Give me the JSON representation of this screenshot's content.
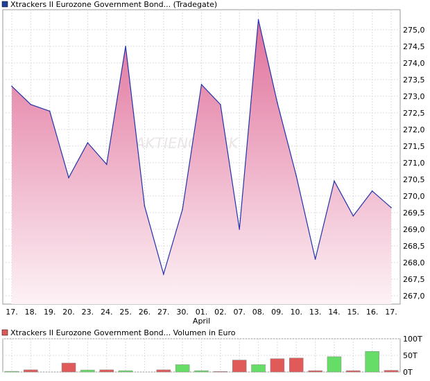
{
  "chart_data": [
    {
      "type": "area",
      "title": "Xtrackers II Eurozone Government Bond... (Tradegate)",
      "legend_color": "#1f3f9a",
      "line_color": "#2233aa",
      "fill_top_color": "#e0709a",
      "fill_bottom_color": "#fdf2f6",
      "watermark": "AKTIENCHECK",
      "x": [
        "17.",
        "18.",
        "19.",
        "20.",
        "23.",
        "24.",
        "25.",
        "26.",
        "27.",
        "30.",
        "01.",
        "02.",
        "07.",
        "08.",
        "09.",
        "10.",
        "13.",
        "14.",
        "15.",
        "16.",
        "17."
      ],
      "x_secondary_label": {
        "at": "01.",
        "text": "April"
      },
      "series": [
        {
          "values": [
            273.3,
            272.75,
            272.55,
            270.55,
            271.6,
            270.95,
            274.5,
            269.7,
            267.65,
            269.6,
            273.35,
            272.75,
            269.0,
            275.3,
            272.8,
            270.6,
            268.1,
            270.45,
            269.4,
            270.15,
            269.65
          ]
        }
      ],
      "y_ticks": [
        "267,0",
        "267,5",
        "268,0",
        "268,5",
        "269,0",
        "269,5",
        "270,0",
        "270,5",
        "271,0",
        "271,5",
        "272,0",
        "272,5",
        "273,0",
        "273,5",
        "274,0",
        "274,5",
        "275,0"
      ],
      "ylim": [
        266.75,
        275.6
      ],
      "grid": true
    },
    {
      "type": "bar",
      "title": "Xtrackers II Eurozone Government Bond... Volumen in Euro",
      "legend_color": "#e05a5a",
      "up_color": "#66dd66",
      "down_color": "#e05a5a",
      "x": [
        "17.",
        "18.",
        "19.",
        "20.",
        "23.",
        "24.",
        "25.",
        "26.",
        "27.",
        "30.",
        "01.",
        "02.",
        "07.",
        "08.",
        "09.",
        "10.",
        "13.",
        "14.",
        "15.",
        "16.",
        "17."
      ],
      "series": [
        {
          "values": [
            2000,
            6500,
            0,
            27000,
            6000,
            6500,
            4000,
            0,
            6500,
            22000,
            4000,
            1500,
            36000,
            22000,
            40000,
            42000,
            4000,
            46000,
            4000,
            62000,
            5000
          ],
          "direction": [
            "up",
            "down",
            "up",
            "down",
            "up",
            "down",
            "up",
            "down",
            "down",
            "up",
            "up",
            "down",
            "down",
            "up",
            "down",
            "down",
            "down",
            "up",
            "down",
            "up",
            "down"
          ]
        }
      ],
      "y_ticks": [
        "0T",
        "50T",
        "100T"
      ],
      "ylim": [
        0,
        100000
      ],
      "grid": true
    }
  ]
}
